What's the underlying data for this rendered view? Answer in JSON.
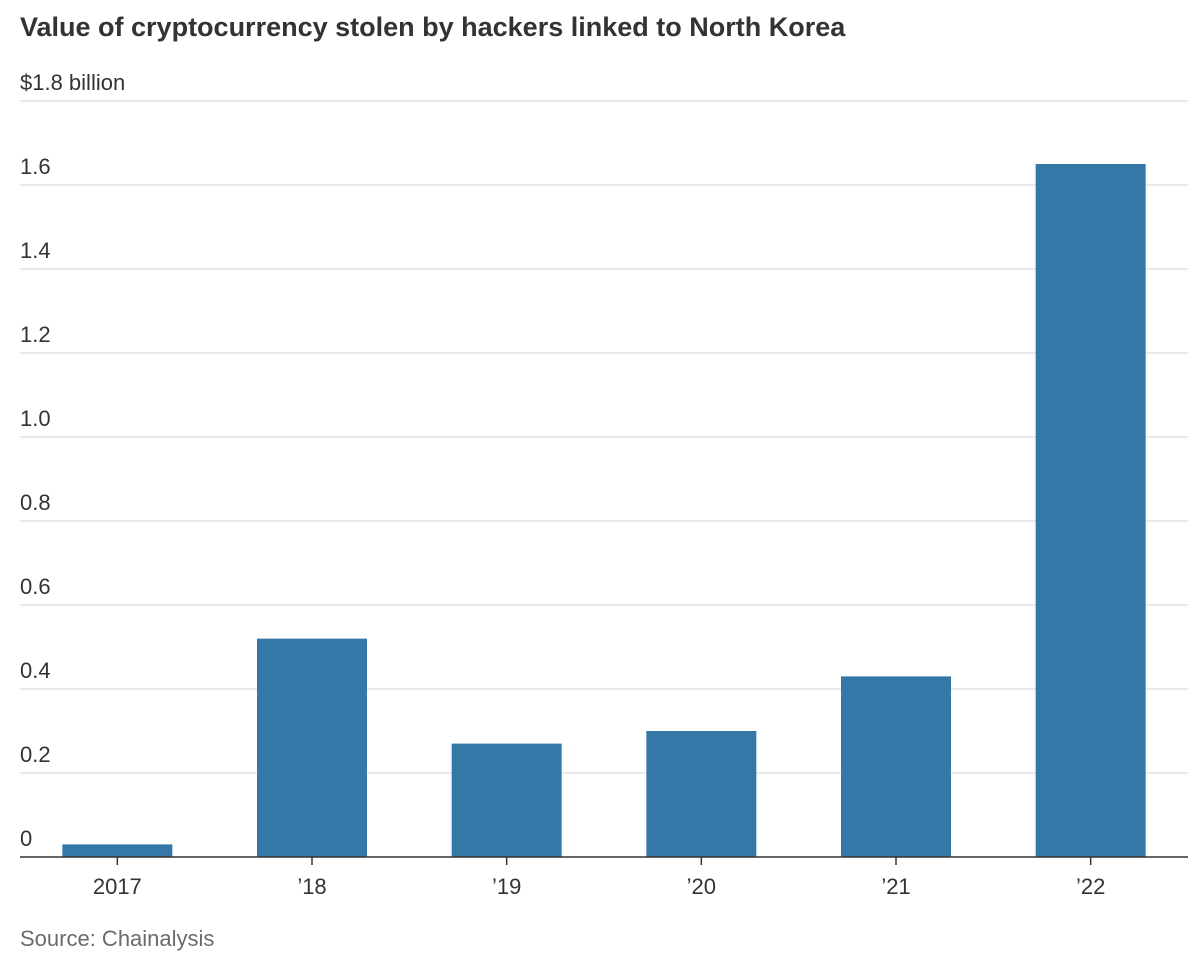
{
  "title": "Value of cryptocurrency stolen by hackers linked to North Korea",
  "source": "Source: Chainalysis",
  "colors": {
    "bar": "#3578a8",
    "gridline": "#dcdcdc",
    "axis": "#333333",
    "text": "#333333",
    "source_text": "#6b6b6b"
  },
  "chart_data": {
    "type": "bar",
    "title": "Value of cryptocurrency stolen by hackers linked to North Korea",
    "xlabel": "",
    "ylabel": "",
    "categories": [
      "2017",
      "’18",
      "’19",
      "’20",
      "’21",
      "’22"
    ],
    "values": [
      0.03,
      0.52,
      0.27,
      0.3,
      0.43,
      1.65
    ],
    "ylim": [
      0,
      1.8
    ],
    "y_ticks": [
      {
        "value": 0,
        "label": "0"
      },
      {
        "value": 0.2,
        "label": "0.2"
      },
      {
        "value": 0.4,
        "label": "0.4"
      },
      {
        "value": 0.6,
        "label": "0.6"
      },
      {
        "value": 0.8,
        "label": "0.8"
      },
      {
        "value": 1.0,
        "label": "1.0"
      },
      {
        "value": 1.2,
        "label": "1.2"
      },
      {
        "value": 1.4,
        "label": "1.4"
      },
      {
        "value": 1.6,
        "label": "1.6"
      },
      {
        "value": 1.8,
        "label": "$1.8 billion"
      }
    ],
    "grid": true,
    "legend": "none"
  }
}
